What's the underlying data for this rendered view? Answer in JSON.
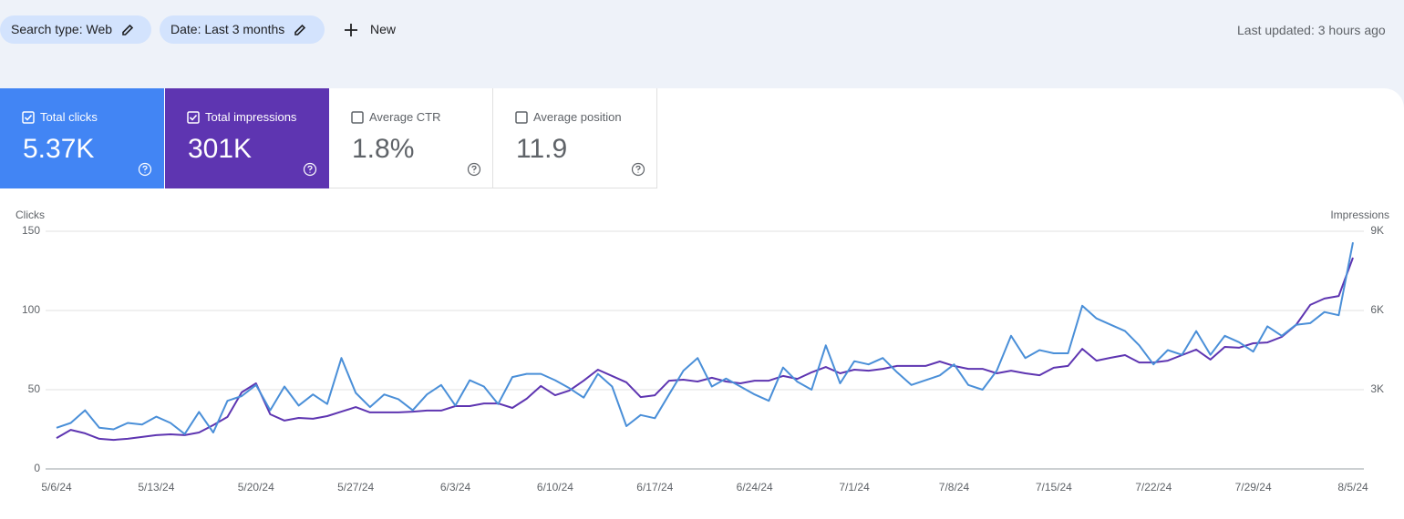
{
  "toolbar": {
    "filters": [
      "Search type: Web",
      "Date: Last 3 months"
    ],
    "new_button": "New",
    "last_updated": "Last updated: 3 hours ago"
  },
  "metrics": [
    {
      "label": "Total clicks",
      "value": "5.37K",
      "checked": true,
      "color": "#4285f4"
    },
    {
      "label": "Total impressions",
      "value": "301K",
      "checked": true,
      "color": "#5e35b1"
    },
    {
      "label": "Average CTR",
      "value": "1.8%",
      "checked": false
    },
    {
      "label": "Average position",
      "value": "11.9",
      "checked": false
    }
  ],
  "chart_data": {
    "type": "line",
    "y_label": "Clicks",
    "y2_label": "Impressions",
    "grid": true,
    "categories": [
      "5/6/24",
      null,
      null,
      null,
      null,
      null,
      null,
      "5/13/24",
      null,
      null,
      null,
      null,
      null,
      null,
      "5/20/24",
      null,
      null,
      null,
      null,
      null,
      null,
      "5/27/24",
      null,
      null,
      null,
      null,
      null,
      null,
      "6/3/24",
      null,
      null,
      null,
      null,
      null,
      null,
      "6/10/24",
      null,
      null,
      null,
      null,
      null,
      null,
      "6/17/24",
      null,
      null,
      null,
      null,
      null,
      null,
      "6/24/24",
      null,
      null,
      null,
      null,
      null,
      null,
      "7/1/24",
      null,
      null,
      null,
      null,
      null,
      null,
      "7/8/24",
      null,
      null,
      null,
      null,
      null,
      null,
      "7/15/24",
      null,
      null,
      null,
      null,
      null,
      null,
      "7/22/24",
      null,
      null,
      null,
      null,
      null,
      null,
      "7/29/24",
      null,
      null,
      null,
      null,
      null,
      null,
      "8/5/24"
    ],
    "ylim": [
      0,
      150
    ],
    "yticks": [
      0,
      50,
      100,
      150
    ],
    "y2lim": [
      0,
      9000
    ],
    "y2ticks": [
      {
        "value": 3000,
        "label": "3K"
      },
      {
        "value": 6000,
        "label": "6K"
      },
      {
        "value": 9000,
        "label": "9K"
      }
    ],
    "series": [
      {
        "color": "#5e35b1",
        "axis": "y2",
        "values": [
          1170,
          1480,
          1350,
          1140,
          1100,
          1140,
          1210,
          1280,
          1310,
          1280,
          1380,
          1660,
          1970,
          2900,
          3240,
          2070,
          1830,
          1930,
          1900,
          2000,
          2170,
          2340,
          2140,
          2140,
          2140,
          2170,
          2210,
          2210,
          2380,
          2380,
          2480,
          2480,
          2310,
          2660,
          3140,
          2790,
          2970,
          3340,
          3760,
          3520,
          3280,
          2720,
          2790,
          3340,
          3380,
          3310,
          3450,
          3310,
          3240,
          3340,
          3340,
          3520,
          3410,
          3660,
          3860,
          3620,
          3760,
          3720,
          3790,
          3900,
          3900,
          3900,
          4070,
          3900,
          3790,
          3790,
          3620,
          3720,
          3620,
          3550,
          3830,
          3900,
          4550,
          4100,
          4210,
          4310,
          4030,
          4030,
          4100,
          4310,
          4520,
          4140,
          4620,
          4590,
          4760,
          4790,
          5000,
          5450,
          6210,
          6450,
          6550,
          8000
        ]
      },
      {
        "color": "#4a8fd8",
        "values": [
          26,
          29,
          37,
          26,
          25,
          29,
          28,
          33,
          29,
          22,
          36,
          23,
          43,
          46,
          53,
          37,
          52,
          40,
          47,
          41,
          70,
          48,
          39,
          47,
          44,
          37,
          47,
          53,
          40,
          56,
          52,
          41,
          58,
          60,
          60,
          56,
          51,
          45,
          60,
          52,
          27,
          34,
          32,
          47,
          62,
          70,
          52,
          57,
          52,
          47,
          43,
          64,
          55,
          50,
          78,
          54,
          68,
          66,
          70,
          61,
          53,
          56,
          59,
          66,
          53,
          50,
          62,
          84,
          70,
          75,
          73,
          73,
          103,
          95,
          91,
          87,
          78,
          66,
          75,
          72,
          87,
          72,
          84,
          80,
          74,
          90,
          84,
          91,
          92,
          99,
          97,
          143
        ]
      }
    ]
  }
}
